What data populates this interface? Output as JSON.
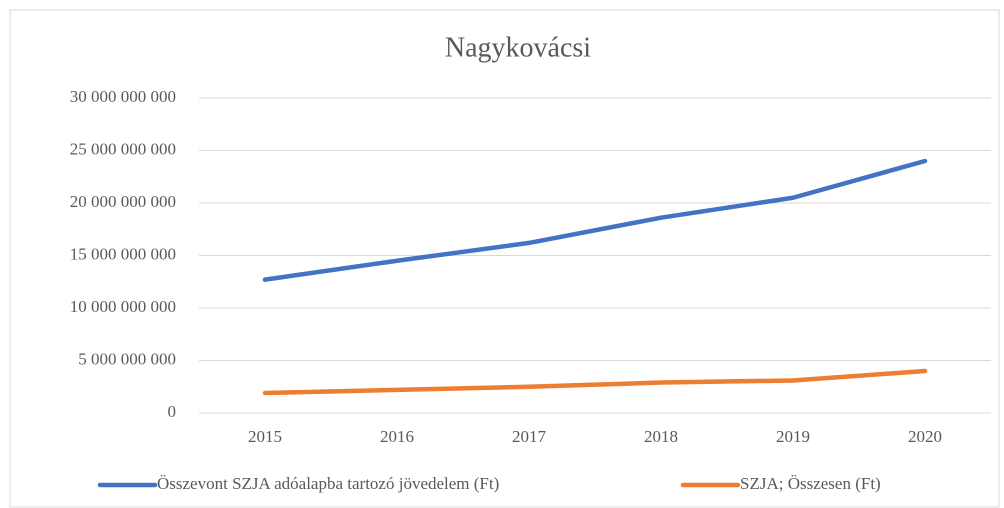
{
  "chart_data": {
    "type": "line",
    "title": "Nagykovácsi",
    "categories": [
      "2015",
      "2016",
      "2017",
      "2018",
      "2019",
      "2020"
    ],
    "series": [
      {
        "name": "Összevont SZJA adóalapba tartozó jövedelem (Ft)",
        "color": "#4472c4",
        "values": [
          12700000000,
          14500000000,
          16200000000,
          18600000000,
          20500000000,
          24000000000
        ]
      },
      {
        "name": "SZJA; Összesen (Ft)",
        "color": "#ed7d31",
        "values": [
          1900000000,
          2200000000,
          2500000000,
          2900000000,
          3100000000,
          4000000000
        ]
      }
    ],
    "ylim": [
      0,
      30000000000
    ],
    "yticks": [
      0,
      {
        "value": 5000000000,
        "label": "5 000 000 000"
      },
      {
        "value": 10000000000,
        "label": "10 000 000 000"
      },
      {
        "value": 15000000000,
        "label": "15 000 000 000"
      },
      {
        "value": 20000000000,
        "label": "20 000 000 000"
      },
      {
        "value": 25000000000,
        "label": "25 000 000 000"
      },
      {
        "value": 30000000000,
        "label": "30 000 000 000"
      }
    ],
    "grid": true,
    "legend": "bottom"
  }
}
